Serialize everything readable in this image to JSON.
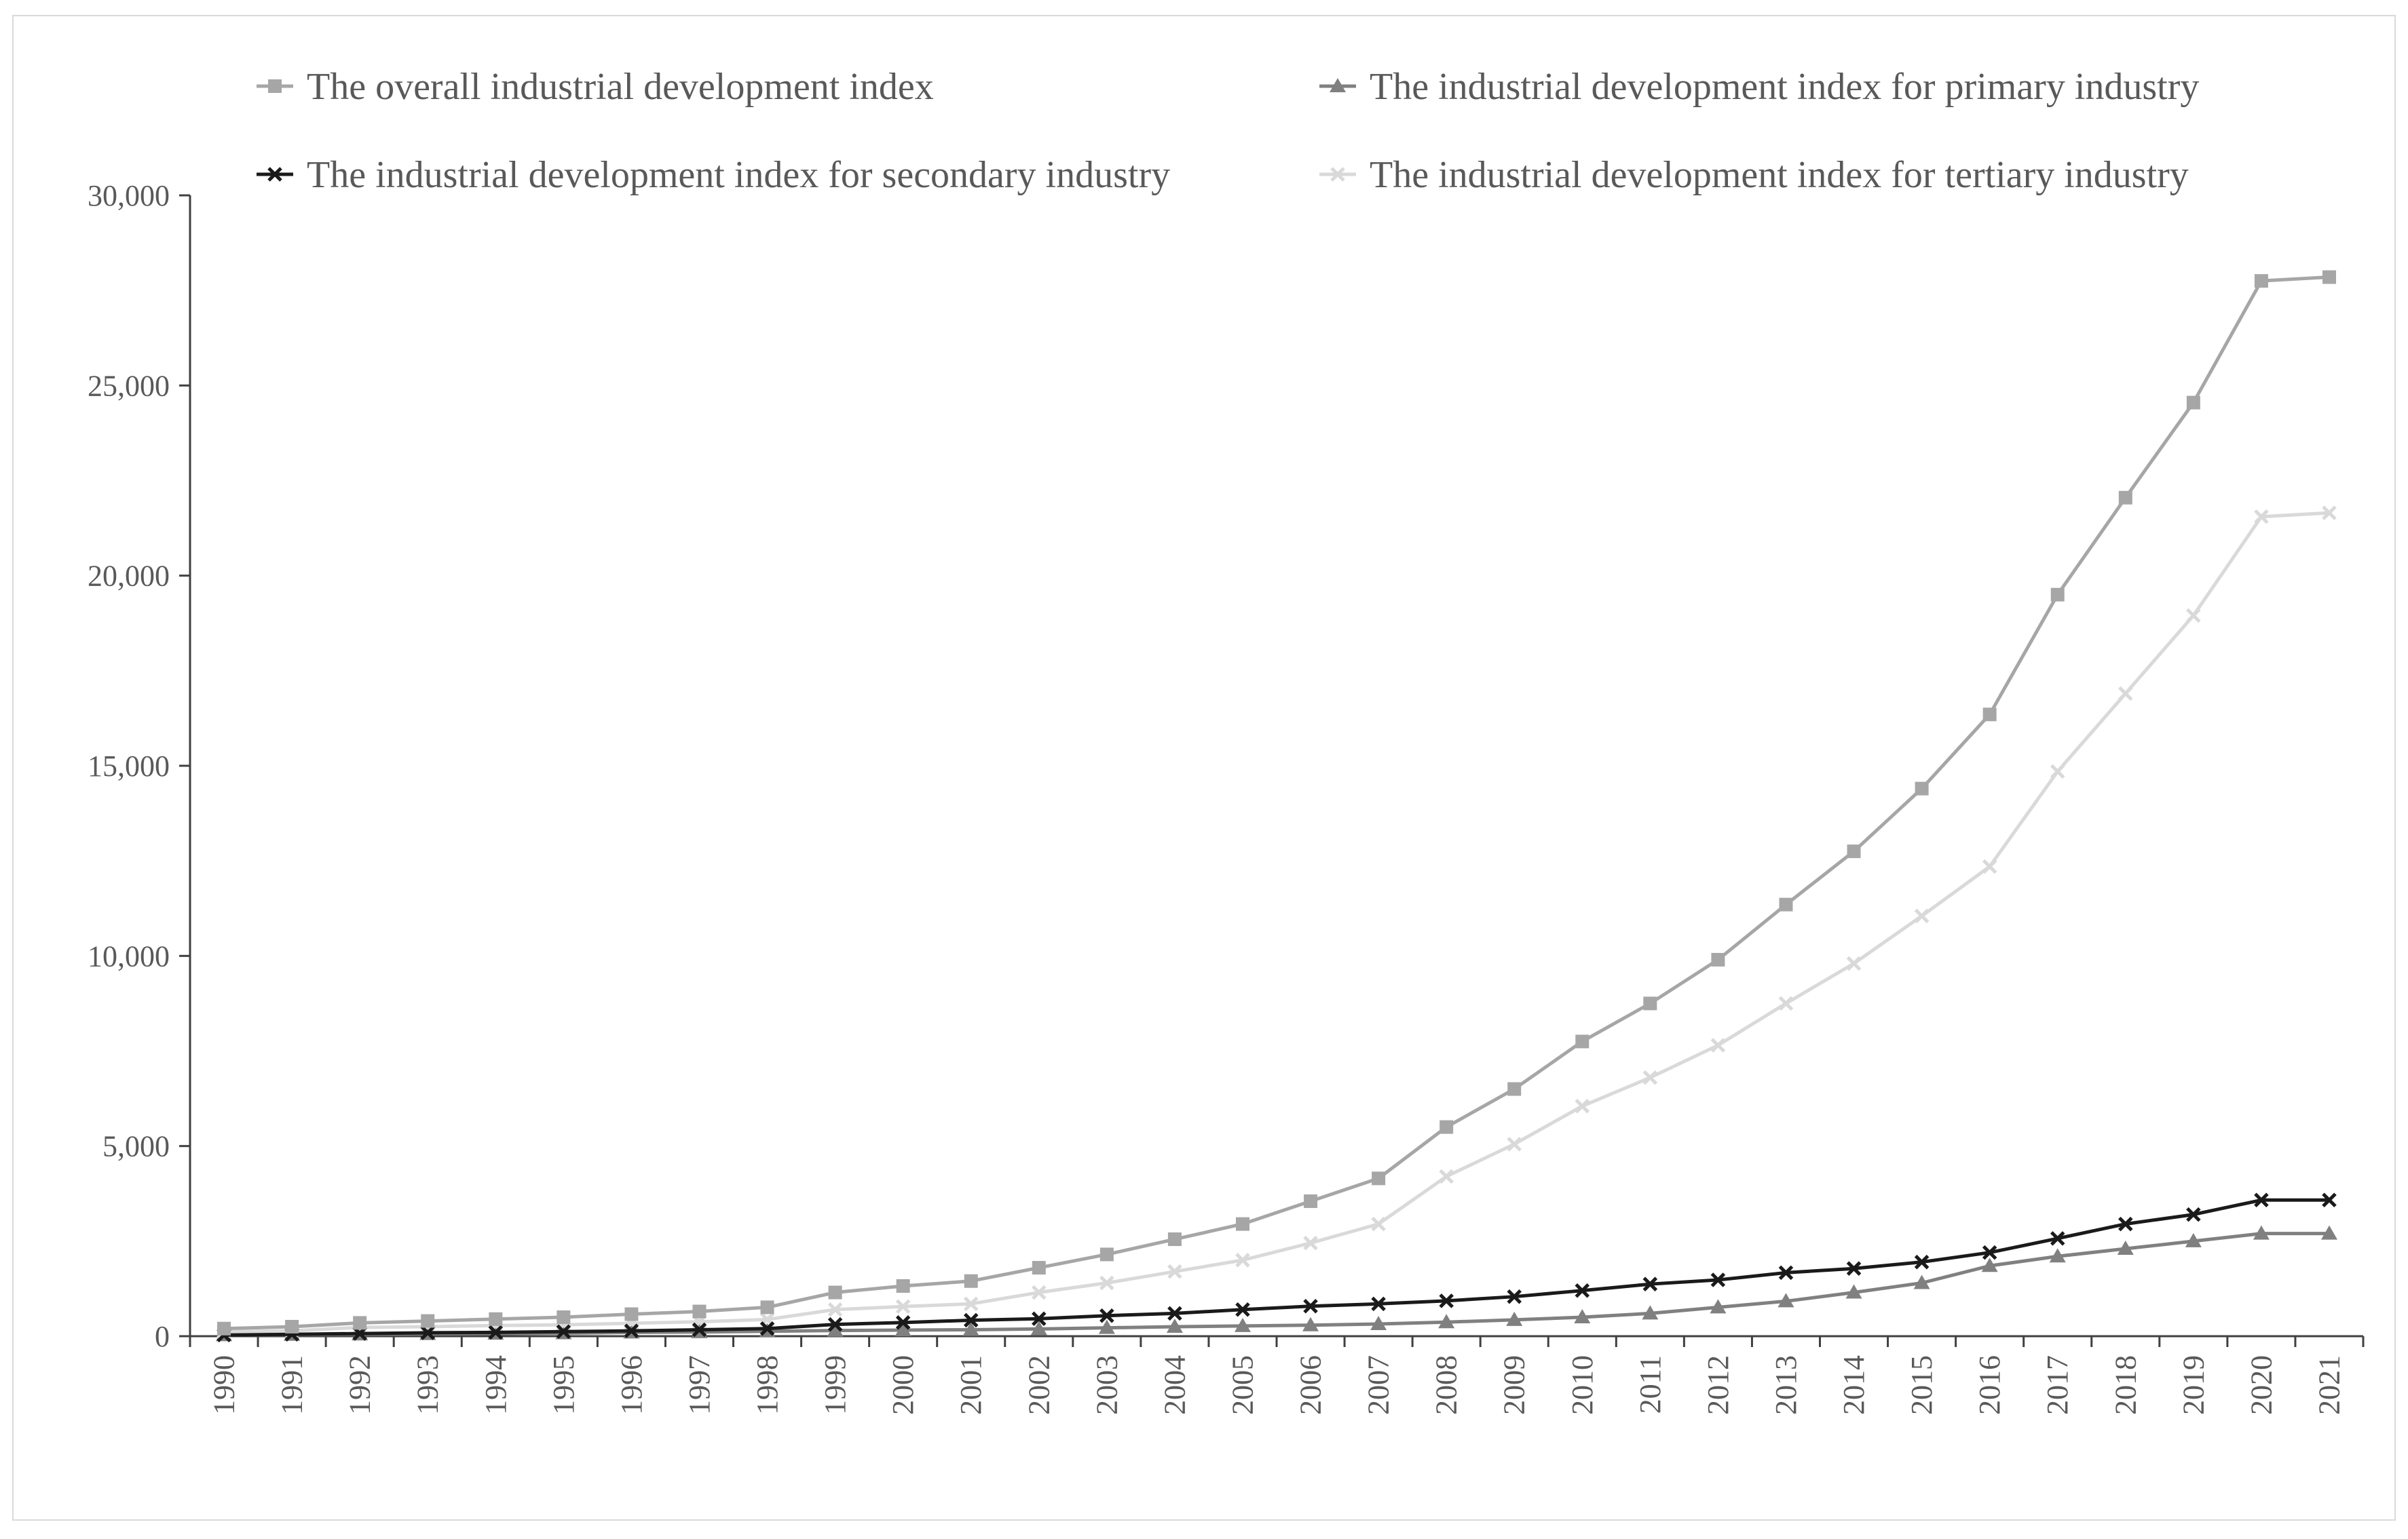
{
  "chart_data": {
    "type": "line",
    "title": "",
    "xlabel": "",
    "ylabel": "",
    "ylim": [
      0,
      30000
    ],
    "yticks": [
      0,
      5000,
      10000,
      15000,
      20000,
      25000,
      30000
    ],
    "ytick_labels": [
      "0",
      "5,000",
      "10,000",
      "15,000",
      "20,000",
      "25,000",
      "30,000"
    ],
    "grid": false,
    "legend_position": "top",
    "categories": [
      "1990",
      "1991",
      "1992",
      "1993",
      "1994",
      "1995",
      "1996",
      "1997",
      "1998",
      "1999",
      "2000",
      "2001",
      "2002",
      "2003",
      "2004",
      "2005",
      "2006",
      "2007",
      "2008",
      "2009",
      "2010",
      "2011",
      "2012",
      "2013",
      "2014",
      "2015",
      "2016",
      "2017",
      "2018",
      "2019",
      "2020",
      "2021"
    ],
    "series": [
      {
        "name": "The overall industrial development index",
        "color": "#a6a6a6",
        "marker": "square",
        "values": [
          200,
          250,
          350,
          400,
          450,
          500,
          580,
          650,
          760,
          1150,
          1320,
          1450,
          1800,
          2150,
          2550,
          2950,
          3550,
          4150,
          5500,
          6500,
          7750,
          8750,
          9900,
          11350,
          12750,
          14400,
          16350,
          19500,
          22050,
          24550,
          27750,
          27850
        ]
      },
      {
        "name": "The industrial development index for primary industry",
        "color": "#808080",
        "marker": "triangle",
        "values": [
          30,
          40,
          50,
          60,
          70,
          80,
          100,
          110,
          130,
          150,
          160,
          170,
          190,
          220,
          250,
          270,
          290,
          320,
          370,
          430,
          500,
          600,
          760,
          920,
          1150,
          1400,
          1850,
          2100,
          2300,
          2500,
          2700,
          2700
        ]
      },
      {
        "name": "The industrial development index for secondary industry",
        "color": "#1a1a1a",
        "marker": "x",
        "values": [
          30,
          50,
          70,
          90,
          100,
          120,
          140,
          170,
          200,
          310,
          360,
          420,
          460,
          540,
          600,
          700,
          790,
          850,
          930,
          1040,
          1200,
          1370,
          1480,
          1670,
          1780,
          1950,
          2200,
          2570,
          2950,
          3200,
          3580,
          3580
        ]
      },
      {
        "name": "The industrial development index for tertiary industry",
        "color": "#d9d9d9",
        "marker": "x",
        "values": [
          120,
          140,
          230,
          250,
          280,
          300,
          340,
          380,
          440,
          700,
          780,
          850,
          1150,
          1400,
          1700,
          2000,
          2450,
          2950,
          4200,
          5050,
          6050,
          6800,
          7650,
          8750,
          9800,
          11050,
          12350,
          14850,
          16900,
          18950,
          21550,
          21650
        ]
      }
    ]
  }
}
